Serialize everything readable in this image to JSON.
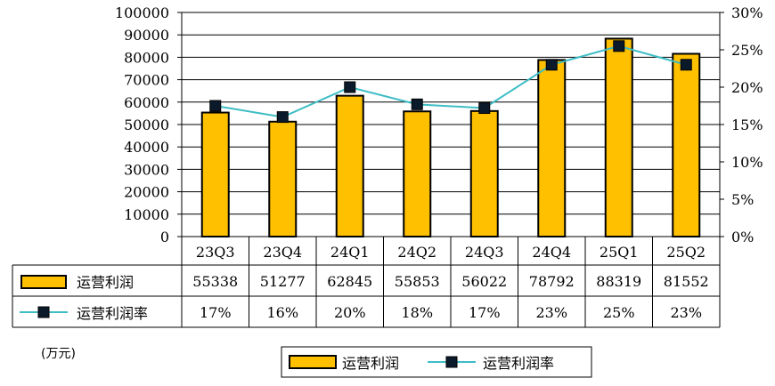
{
  "chart_data": {
    "type": "bar",
    "categories": [
      "23Q3",
      "23Q4",
      "24Q1",
      "24Q2",
      "24Q3",
      "24Q4",
      "25Q1",
      "25Q2"
    ],
    "series": [
      {
        "name": "运营利润",
        "kind": "bar",
        "axis": "left",
        "values": [
          55338,
          51277,
          62845,
          55853,
          56022,
          78792,
          88319,
          81552
        ]
      },
      {
        "name": "运营利润率",
        "kind": "line",
        "axis": "right",
        "values": [
          17.5,
          16.0,
          20.0,
          17.7,
          17.2,
          23.0,
          25.5,
          23.0
        ],
        "labels": [
          "17%",
          "16%",
          "20%",
          "18%",
          "17%",
          "23%",
          "25%",
          "23%"
        ]
      }
    ],
    "y_left": {
      "ylim": [
        0,
        100000
      ],
      "ticks": [
        "100000",
        "90000",
        "80000",
        "70000",
        "60000",
        "50000",
        "40000",
        "30000",
        "20000",
        "10000",
        "0"
      ]
    },
    "y_right": {
      "ylim": [
        0,
        30
      ],
      "ticks": [
        "30%",
        "25%",
        "20%",
        "15%",
        "10%",
        "5%",
        "0%"
      ]
    },
    "unit_label": "(万元)",
    "legend": {
      "position": "bottom",
      "items": [
        "运营利润",
        "运营利润率"
      ]
    },
    "grid": true,
    "colors": {
      "bar": "#FFC000",
      "bar_edge": "#000000",
      "line": "#3DBDC4",
      "marker": "#0B1A2A"
    }
  }
}
